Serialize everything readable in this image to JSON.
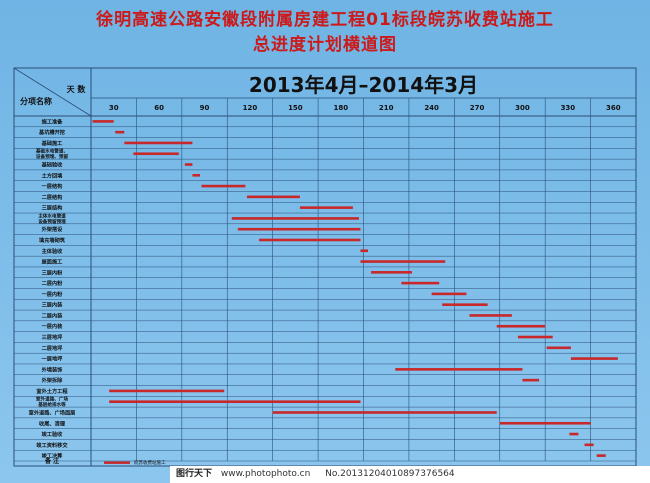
{
  "title_line1": "徐明高速公路安徽段附属房建工程01标段皖苏收费站施工",
  "title_line2": "总进度计划横道图",
  "chart_data": {
    "type": "gantt",
    "period_title": "2013年4月–2014年3月",
    "header_days_label": "天 数",
    "header_item_label": "分项名称",
    "x_ticks": [
      30,
      60,
      90,
      120,
      150,
      180,
      210,
      240,
      270,
      300,
      330,
      360
    ],
    "xlim": [
      0,
      360
    ],
    "bar_color": "#c8282a",
    "tasks": [
      {
        "name": "施工准备",
        "bars": [
          [
            1,
            15
          ]
        ]
      },
      {
        "name": "基坑槽开挖",
        "bars": [
          [
            16,
            22
          ]
        ]
      },
      {
        "name": "基础施工",
        "bars": [
          [
            22,
            67
          ]
        ]
      },
      {
        "name": "基础水电管道、设备预埋、预留",
        "bars": [
          [
            28,
            58
          ]
        ]
      },
      {
        "name": "基础验收",
        "bars": [
          [
            62,
            67
          ]
        ]
      },
      {
        "name": "土方回填",
        "bars": [
          [
            67,
            72
          ]
        ]
      },
      {
        "name": "一层结构",
        "bars": [
          [
            73,
            102
          ]
        ]
      },
      {
        "name": "二层结构",
        "bars": [
          [
            103,
            138
          ]
        ]
      },
      {
        "name": "三层结构",
        "bars": [
          [
            138,
            173
          ]
        ]
      },
      {
        "name": "主体水电管道设备预留预埋",
        "bars": [
          [
            93,
            177
          ]
        ]
      },
      {
        "name": "外架搭设",
        "bars": [
          [
            97,
            178
          ]
        ]
      },
      {
        "name": "填充墙砌筑",
        "bars": [
          [
            111,
            178
          ]
        ]
      },
      {
        "name": "主体验收",
        "bars": [
          [
            178,
            183
          ]
        ]
      },
      {
        "name": "屋面施工",
        "bars": [
          [
            178,
            234
          ]
        ]
      },
      {
        "name": "三层内粉",
        "bars": [
          [
            185,
            212
          ]
        ]
      },
      {
        "name": "二层内粉",
        "bars": [
          [
            205,
            230
          ]
        ]
      },
      {
        "name": "一层内粉",
        "bars": [
          [
            225,
            248
          ]
        ]
      },
      {
        "name": "三层内装",
        "bars": [
          [
            232,
            262
          ]
        ]
      },
      {
        "name": "二层内装",
        "bars": [
          [
            250,
            278
          ]
        ]
      },
      {
        "name": "一层内装",
        "bars": [
          [
            268,
            300
          ]
        ]
      },
      {
        "name": "三层地坪",
        "bars": [
          [
            282,
            305
          ]
        ]
      },
      {
        "name": "二层地坪",
        "bars": [
          [
            301,
            317
          ]
        ]
      },
      {
        "name": "一层地坪",
        "bars": [
          [
            317,
            348
          ]
        ]
      },
      {
        "name": "外墙装饰",
        "bars": [
          [
            201,
            285
          ]
        ]
      },
      {
        "name": "外架拆除",
        "bars": [
          [
            285,
            296
          ]
        ]
      },
      {
        "name": "室外土方工程",
        "bars": [
          [
            12,
            88
          ]
        ]
      },
      {
        "name": "室外道路、广场基层给排水等",
        "bars": [
          [
            12,
            178
          ]
        ]
      },
      {
        "name": "室外道路、广场面层",
        "bars": [
          [
            120,
            268
          ]
        ]
      },
      {
        "name": "收尾、清理",
        "bars": [
          [
            270,
            330
          ]
        ]
      },
      {
        "name": "竣工验收",
        "bars": [
          [
            316,
            322
          ]
        ]
      },
      {
        "name": "竣工资料移交",
        "bars": [
          [
            326,
            332
          ]
        ]
      },
      {
        "name": "竣工决算",
        "bars": [
          [
            334,
            340
          ]
        ]
      }
    ],
    "notes_label": "备 注",
    "legend_label": "皖苏收费站施工"
  },
  "watermark": {
    "logo": "图行天下",
    "url": "www.photophoto.cn",
    "code": "No.20131204010897376564"
  }
}
